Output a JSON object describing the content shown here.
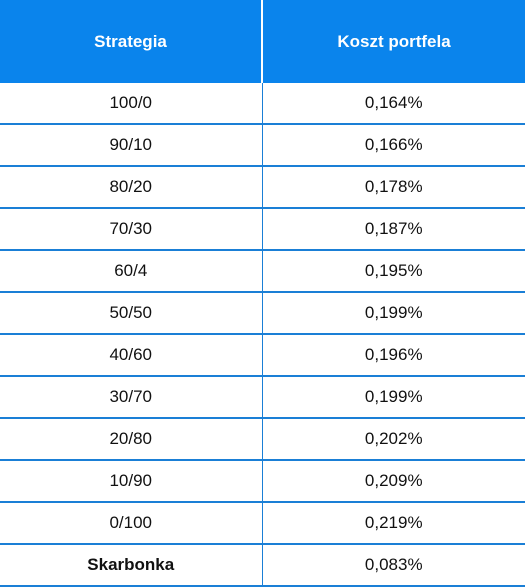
{
  "table": {
    "headers": [
      "Strategia",
      "Koszt portfela"
    ],
    "rows": [
      [
        "100/0",
        "0,164%"
      ],
      [
        "90/10",
        "0,166%"
      ],
      [
        "80/20",
        "0,178%"
      ],
      [
        "70/30",
        "0,187%"
      ],
      [
        "60/4",
        "0,195%"
      ],
      [
        "50/50",
        "0,199%"
      ],
      [
        "40/60",
        "0,196%"
      ],
      [
        "30/70",
        "0,199%"
      ],
      [
        "20/80",
        "0,202%"
      ],
      [
        "10/90",
        "0,209%"
      ],
      [
        "0/100",
        "0,219%"
      ],
      [
        "Skarbonka",
        "0,083%"
      ]
    ],
    "bold_row_index": 11
  },
  "colors": {
    "header_bg": "#0a84ec",
    "header_text": "#ffffff",
    "row_border": "#1a7fd6"
  }
}
